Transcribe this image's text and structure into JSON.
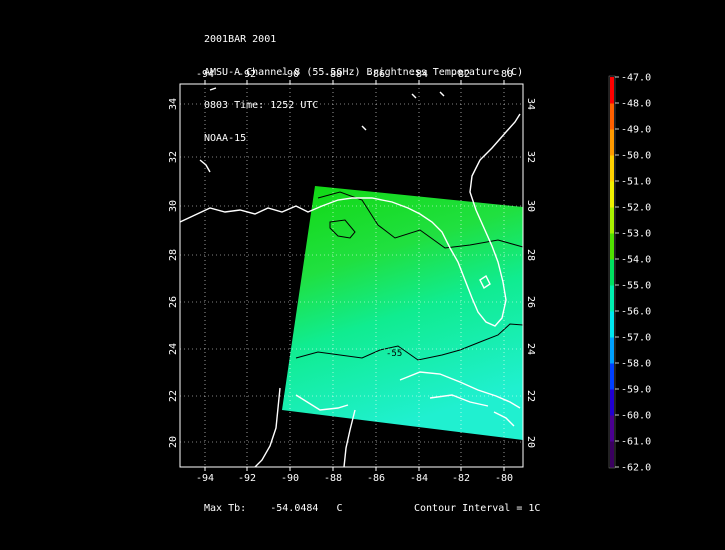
{
  "title": {
    "line1": "2001BAR 2001",
    "line2": "AMSU-A Channel 8 (55.5GHz) Brightness Temperature (C)",
    "line3": "0803 Time: 1252 UTC",
    "line4": "NOAA-15"
  },
  "axes": {
    "lon_ticks": [
      "-94",
      "-92",
      "-90",
      "-88",
      "-86",
      "-84",
      "-82",
      "-80"
    ],
    "lat_ticks": [
      "34",
      "32",
      "30",
      "28",
      "26",
      "24",
      "22",
      "20"
    ]
  },
  "colorbar": {
    "labels": [
      "-47.0",
      "-48.0",
      "-49.0",
      "-50.0",
      "-51.0",
      "-52.0",
      "-53.0",
      "-54.0",
      "-55.0",
      "-56.0",
      "-57.0",
      "-58.0",
      "-59.0",
      "-60.0",
      "-61.0",
      "-62.0"
    ],
    "colors": [
      "#ff0000",
      "#ff6000",
      "#ff9a00",
      "#ffd000",
      "#f0f000",
      "#a8f000",
      "#50e000",
      "#00e060",
      "#00f0b0",
      "#00e8f0",
      "#00a0ff",
      "#0040ff",
      "#2000d0",
      "#4a0090",
      "#3a0060",
      "#200030"
    ]
  },
  "contour_label": "-55",
  "footer": {
    "max_label": "Max Tb:",
    "max_value": "-54.0484",
    "max_unit": "C",
    "contour_interval": "Contour Interval = 1C"
  }
}
